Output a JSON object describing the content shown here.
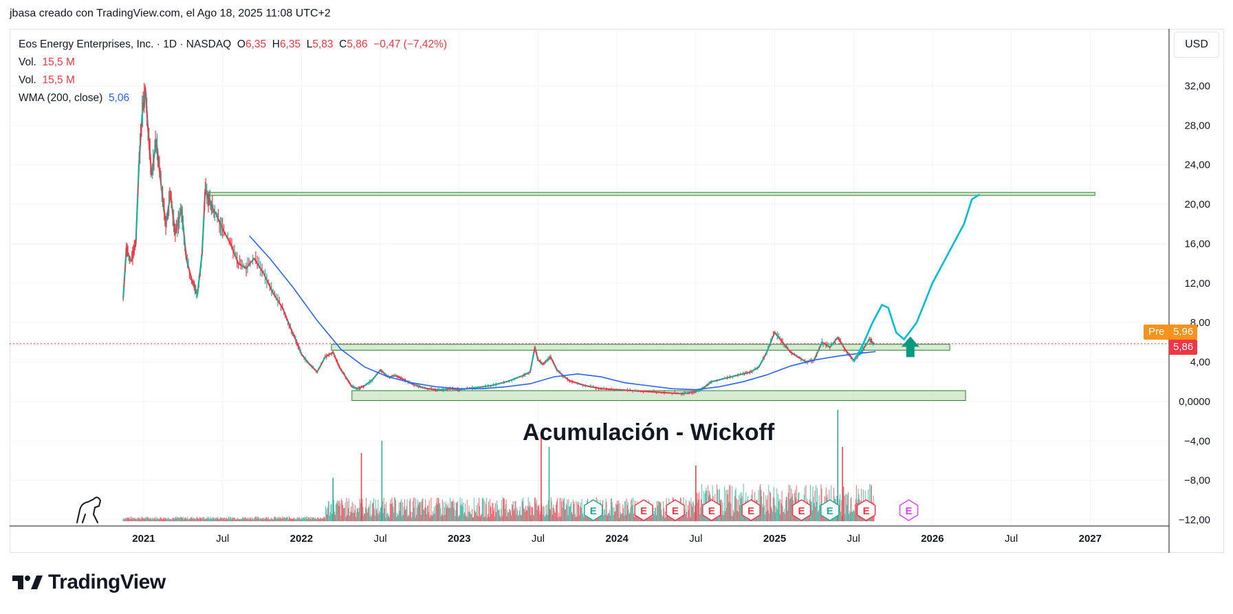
{
  "caption": "jbasa creado con TradingView.com, el Ago 18, 2025 11:08 UTC+2",
  "legend": {
    "symbol": "Eos Energy Enterprises, Inc. · 1D · NASDAQ",
    "o_label": "O",
    "o_value": "6,35",
    "h_label": "H",
    "h_value": "6,35",
    "l_label": "L",
    "l_value": "5,83",
    "c_label": "C",
    "c_value": "5,86",
    "change": "−0,47 (−7,42%)",
    "vol1_label": "Vol.",
    "vol1_value": "15,5 M",
    "vol2_label": "Vol.",
    "vol2_value": "15,5 M",
    "wma_label": "WMA (200, close)",
    "wma_value": "5,06"
  },
  "currency": "USD",
  "brand": "TradingView",
  "annotation": "Acumulación - Wickoff",
  "price_labels": {
    "pre_label": "Pre",
    "pre_value": "5,96",
    "last_value": "5,86"
  },
  "colors": {
    "up": "#22ab94",
    "down": "#f23645",
    "wma": "#2962ff",
    "projection": "#00bcd4",
    "zone_fill": "#cfe8c9",
    "zone_stroke": "#2e7d32",
    "pre": "#f7931a",
    "arrow": "#089981"
  },
  "chart_data": {
    "type": "line",
    "title": "",
    "y_axis": {
      "ticks": [
        32,
        28,
        24,
        20,
        16,
        12,
        8,
        4,
        0,
        -4,
        -8,
        -12
      ],
      "tick_labels": [
        "32,00",
        "28,00",
        "24,00",
        "20,00",
        "16,00",
        "12,00",
        "8,00",
        "4,00",
        "0,0000",
        "−4,00",
        "−8,00",
        "−12,00"
      ],
      "ylim": [
        -12,
        36
      ]
    },
    "x_axis": {
      "tick_labels": [
        "2021",
        "Jul",
        "2022",
        "Jul",
        "2023",
        "Jul",
        "2024",
        "Jul",
        "2025",
        "Jul",
        "2026",
        "Jul",
        "2027"
      ],
      "tick_bold": [
        true,
        false,
        true,
        false,
        true,
        false,
        true,
        false,
        true,
        false,
        true,
        false,
        true
      ],
      "tick_dates": [
        2021.0,
        2021.5,
        2022.0,
        2022.5,
        2023.0,
        2023.5,
        2024.0,
        2024.5,
        2025.0,
        2025.5,
        2026.0,
        2026.5,
        2027.0
      ],
      "xlim": [
        2020.15,
        2027.5
      ]
    },
    "series": [
      {
        "name": "Eos Energy Enterprises, Inc.",
        "x": [
          2020.87,
          2020.89,
          2020.92,
          2020.95,
          2020.97,
          2020.99,
          2021.01,
          2021.03,
          2021.05,
          2021.08,
          2021.11,
          2021.14,
          2021.17,
          2021.2,
          2021.24,
          2021.27,
          2021.31,
          2021.34,
          2021.37,
          2021.39,
          2021.41,
          2021.43,
          2021.46,
          2021.5,
          2021.55,
          2021.6,
          2021.65,
          2021.7,
          2021.76,
          2021.82,
          2021.88,
          2021.93,
          2021.97,
          2022.0,
          2022.05,
          2022.1,
          2022.15,
          2022.2,
          2022.24,
          2022.28,
          2022.32,
          2022.36,
          2022.4,
          2022.45,
          2022.5,
          2022.55,
          2022.6,
          2022.65,
          2022.7,
          2022.75,
          2022.8,
          2022.85,
          2022.9,
          2022.95,
          2023.0,
          2023.1,
          2023.2,
          2023.3,
          2023.4,
          2023.45,
          2023.48,
          2023.5,
          2023.53,
          2023.58,
          2023.62,
          2023.66,
          2023.7,
          2023.8,
          2023.9,
          2024.0,
          2024.1,
          2024.2,
          2024.3,
          2024.4,
          2024.45,
          2024.5,
          2024.55,
          2024.6,
          2024.7,
          2024.8,
          2024.85,
          2024.9,
          2024.95,
          2025.0,
          2025.05,
          2025.1,
          2025.15,
          2025.2,
          2025.25,
          2025.3,
          2025.35,
          2025.4,
          2025.45,
          2025.5,
          2025.55,
          2025.6,
          2025.63
        ],
        "values": [
          10.5,
          15.5,
          14.2,
          16.0,
          24.0,
          29.0,
          31.8,
          27.0,
          23.0,
          26.5,
          22.0,
          18.0,
          21.0,
          17.0,
          19.5,
          14.5,
          12.0,
          10.8,
          15.0,
          21.5,
          20.5,
          19.8,
          19.0,
          17.5,
          16.0,
          14.0,
          13.5,
          14.5,
          13.0,
          11.0,
          9.5,
          7.5,
          6.0,
          4.8,
          3.8,
          3.0,
          4.5,
          5.0,
          3.5,
          2.5,
          1.5,
          1.3,
          1.6,
          2.2,
          3.2,
          2.5,
          2.6,
          2.2,
          1.8,
          1.5,
          1.3,
          1.2,
          1.2,
          1.3,
          1.2,
          1.4,
          1.6,
          2.0,
          2.6,
          3.0,
          5.5,
          4.2,
          3.8,
          4.5,
          3.2,
          2.6,
          2.1,
          1.6,
          1.3,
          1.2,
          1.1,
          1.0,
          0.9,
          0.8,
          0.85,
          1.0,
          1.4,
          2.0,
          2.4,
          2.8,
          3.0,
          3.5,
          5.0,
          7.0,
          6.0,
          5.0,
          4.5,
          4.0,
          4.2,
          6.0,
          5.5,
          6.5,
          5.2,
          4.2,
          5.0,
          6.3,
          5.86
        ]
      },
      {
        "name": "WMA (200, close)",
        "x": [
          2021.67,
          2021.8,
          2021.95,
          2022.1,
          2022.25,
          2022.4,
          2022.55,
          2022.7,
          2022.85,
          2023.0,
          2023.15,
          2023.3,
          2023.45,
          2023.6,
          2023.75,
          2023.9,
          2024.05,
          2024.2,
          2024.35,
          2024.5,
          2024.65,
          2024.8,
          2024.95,
          2025.1,
          2025.25,
          2025.4,
          2025.55,
          2025.64
        ],
        "values": [
          16.8,
          14.5,
          11.5,
          8.2,
          5.3,
          3.5,
          2.5,
          1.9,
          1.5,
          1.3,
          1.3,
          1.5,
          1.8,
          2.5,
          2.8,
          2.5,
          1.9,
          1.6,
          1.3,
          1.2,
          1.5,
          2.0,
          2.7,
          3.6,
          4.2,
          4.6,
          4.9,
          5.06
        ]
      }
    ],
    "projection": {
      "x": [
        2025.5,
        2025.56,
        2025.62,
        2025.68,
        2025.72,
        2025.77,
        2025.82,
        2025.9,
        2026.0,
        2026.1,
        2026.2,
        2026.25,
        2026.3
      ],
      "values": [
        4.0,
        5.8,
        8.0,
        9.8,
        9.5,
        7.0,
        6.3,
        8.0,
        12.0,
        15.0,
        18.0,
        20.5,
        21.0
      ]
    },
    "zones": [
      {
        "x0": 2022.19,
        "x1": 2026.11,
        "y0": 5.2,
        "y1": 5.8
      },
      {
        "x0": 2022.32,
        "x1": 2026.21,
        "y0": 0.1,
        "y1": 1.1
      },
      {
        "x0": 2021.41,
        "x1": 2027.03,
        "y0": 20.9,
        "y1": 21.2
      }
    ],
    "up_arrow": {
      "x": 2025.86,
      "y": 4.5
    },
    "earnings_markers": [
      {
        "x": 2023.85,
        "label": "E",
        "kind": "beat"
      },
      {
        "x": 2024.17,
        "label": "E",
        "kind": "miss"
      },
      {
        "x": 2024.37,
        "label": "E",
        "kind": "miss"
      },
      {
        "x": 2024.6,
        "label": "E",
        "kind": "miss"
      },
      {
        "x": 2024.85,
        "label": "E",
        "kind": "miss"
      },
      {
        "x": 2025.17,
        "label": "E",
        "kind": "miss"
      },
      {
        "x": 2025.35,
        "label": "E",
        "kind": "beat"
      },
      {
        "x": 2025.58,
        "label": "E",
        "kind": "miss"
      },
      {
        "x": 2025.85,
        "label": "E",
        "kind": "upcoming"
      }
    ],
    "volume_spikes": [
      {
        "x": 2022.2,
        "v": 0.35
      },
      {
        "x": 2022.38,
        "v": 0.55
      },
      {
        "x": 2022.51,
        "v": 0.65
      },
      {
        "x": 2023.52,
        "v": 0.7
      },
      {
        "x": 2023.57,
        "v": 0.6
      },
      {
        "x": 2024.5,
        "v": 0.45
      },
      {
        "x": 2025.4,
        "v": 0.9
      },
      {
        "x": 2025.43,
        "v": 0.6
      }
    ],
    "last_price": 5.86
  }
}
